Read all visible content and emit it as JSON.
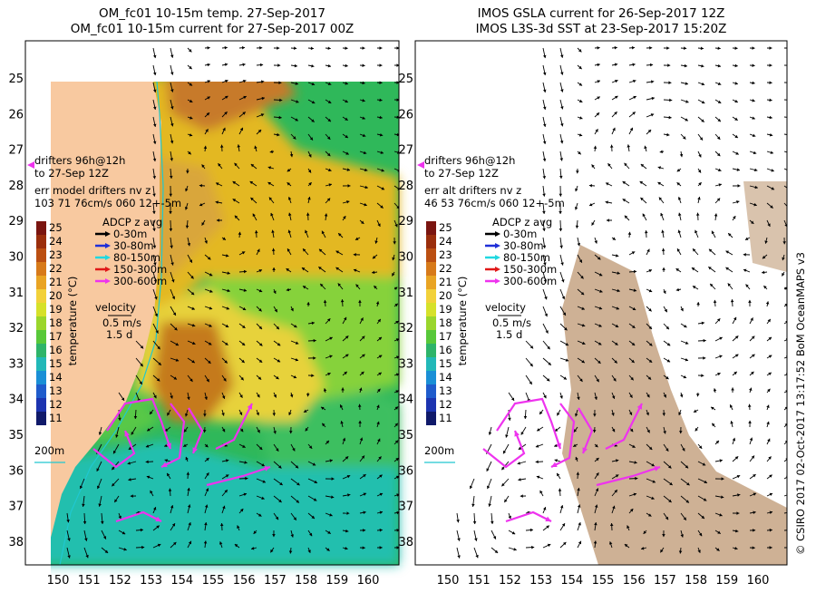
{
  "left_panel": {
    "title_line1": "OM_fc01 10-15m temp. 27-Sep-2017",
    "title_line2": "OM_fc01 10-15m current for 27-Sep-2017 00Z",
    "drifter_line1": "drifters 96h@12h",
    "drifter_line2": "to 27-Sep 12Z",
    "err_line1": "err model drifters nv z",
    "err_line2": "103 71 76cm/s 060 12+-5m"
  },
  "right_panel": {
    "title_line1": "IMOS GSLA current for 26-Sep-2017 12Z",
    "title_line2": "IMOS L3S-3d SST at 23-Sep-2017 15:20Z",
    "drifter_line1": "drifters 96h@12h",
    "drifter_line2": "to 27-Sep 12Z",
    "err_line1": "err alt drifters nv z",
    "err_line2": "46 53 76cm/s 060 12+-5m"
  },
  "latitude_ticks": [
    "25",
    "26",
    "27",
    "28",
    "29",
    "30",
    "31",
    "32",
    "33",
    "34",
    "35",
    "36",
    "37",
    "38"
  ],
  "longitude_ticks": [
    "150",
    "151",
    "152",
    "153",
    "154",
    "155",
    "156",
    "157",
    "158",
    "159",
    "160"
  ],
  "colorbar": {
    "labels": [
      "25",
      "24",
      "23",
      "22",
      "21",
      "20",
      "19",
      "18",
      "17",
      "16",
      "15",
      "14",
      "13",
      "12",
      "11"
    ],
    "axis_label": "temperature (°C)",
    "colors": [
      "#7a1510",
      "#9a2e0c",
      "#bb4f12",
      "#d77a1a",
      "#e9a424",
      "#f2d13a",
      "#d6e12a",
      "#9ad62c",
      "#58c83a",
      "#2eb46a",
      "#22b8b8",
      "#1a8fd6",
      "#1f5ccc",
      "#1c34b0",
      "#101a6a"
    ]
  },
  "adcp_legend": {
    "title": "ADCP z avg",
    "entries": [
      {
        "label": "0-30m",
        "color": "#000000"
      },
      {
        "label": "30-80m",
        "color": "#1f2fd8"
      },
      {
        "label": "80-150m",
        "color": "#20d8e0"
      },
      {
        "label": "150-300m",
        "color": "#e01818"
      },
      {
        "label": "300-600m",
        "color": "#ee33ee"
      }
    ]
  },
  "velocity_legend": {
    "title": "velocity",
    "line1": "0.5 m/s",
    "line2": "1.5 d"
  },
  "isobath_label": "200m",
  "credit": "© CSIRO 2017   02-Oct-2017 13:17:52 BoM OceanMAPS v3"
}
